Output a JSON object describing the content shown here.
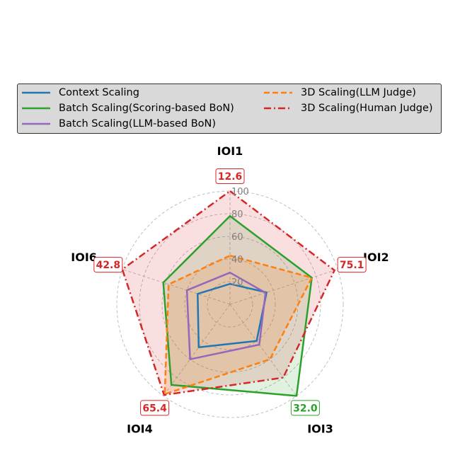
{
  "chart_data": {
    "type": "radar",
    "axes": [
      "IOI1",
      "IOI2",
      "IOI3",
      "IOI4",
      "IOI6"
    ],
    "radial_ticks": [
      20,
      40,
      60,
      80,
      100
    ],
    "rlim": [
      0,
      100
    ],
    "grid": true,
    "legend_position": "top",
    "series": [
      {
        "name": "Context Scaling",
        "color": "#1f77b4",
        "dash": "solid",
        "fill": false,
        "values": [
          18,
          34,
          40,
          47,
          30
        ]
      },
      {
        "name": "Batch Scaling(Scoring-based BoN)",
        "color": "#2ca02c",
        "dash": "solid",
        "fill": true,
        "values": [
          78,
          76,
          100,
          88,
          62
        ]
      },
      {
        "name": "Batch Scaling(LLM-based BoN)",
        "color": "#9467bd",
        "dash": "solid",
        "fill": false,
        "values": [
          28,
          33,
          44,
          60,
          40
        ]
      },
      {
        "name": "3D Scaling(LLM Judge)",
        "color": "#ff7f0e",
        "dash": "dashed",
        "fill": true,
        "values": [
          43,
          76,
          60,
          98,
          57
        ]
      },
      {
        "name": "3D Scaling(Human Judge)",
        "color": "#d62728",
        "dash": "dashdot",
        "fill": true,
        "values": [
          100,
          97,
          80,
          99,
          100
        ]
      }
    ],
    "annotations": [
      {
        "axis": "IOI1",
        "text": "12.6",
        "color": "#d62728"
      },
      {
        "axis": "IOI2",
        "text": "75.1",
        "color": "#d62728"
      },
      {
        "axis": "IOI3",
        "text": "32.0",
        "color": "#2ca02c"
      },
      {
        "axis": "IOI4",
        "text": "65.4",
        "color": "#d62728"
      },
      {
        "axis": "IOI6",
        "text": "42.8",
        "color": "#d62728"
      }
    ]
  }
}
